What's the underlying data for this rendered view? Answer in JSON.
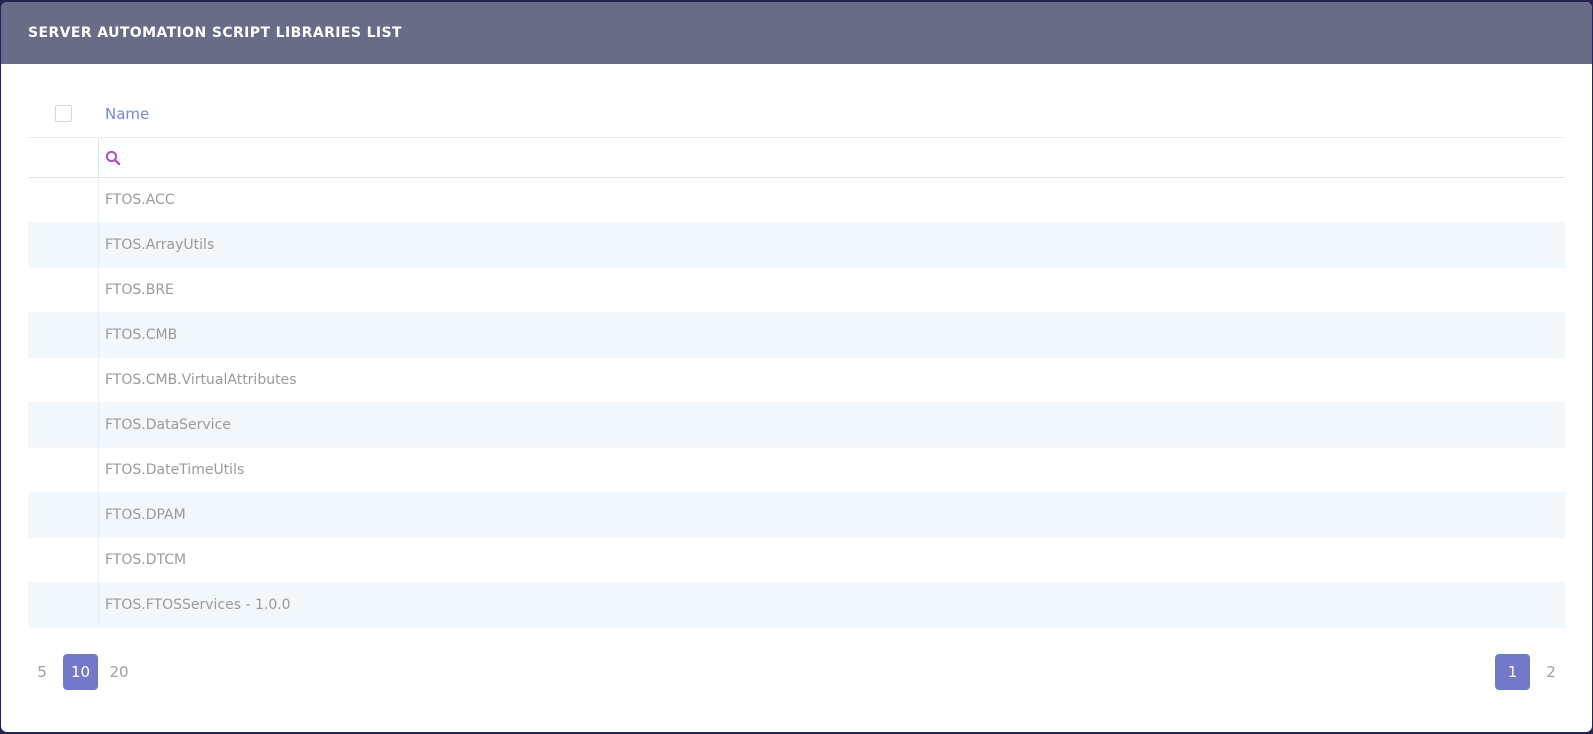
{
  "titlebar": {
    "title": "SERVER AUTOMATION SCRIPT LIBRARIES LIST"
  },
  "table": {
    "select_all": {
      "checked": false
    },
    "columns": [
      {
        "label": "Name"
      }
    ],
    "search": {
      "value": "",
      "placeholder": "",
      "icon": "search-icon"
    },
    "rows": [
      "FTOS.ACC",
      "FTOS.ArrayUtils",
      "FTOS.BRE",
      "FTOS.CMB",
      "FTOS.CMB.VirtualAttributes",
      "FTOS.DataService",
      "FTOS.DateTimeUtils",
      "FTOS.DPAM",
      "FTOS.DTCM",
      "FTOS.FTOSServices - 1.0.0"
    ]
  },
  "pagination": {
    "page_sizes": [
      "5",
      "10",
      "20"
    ],
    "selected_page_size": "10",
    "pages": [
      "1",
      "2"
    ],
    "current_page": "1"
  },
  "colors": {
    "titlebar_background": "#686c87",
    "outer_background": "#262350",
    "accent_selected": "#7279c8",
    "column_header_text": "#7b84d4",
    "search_icon": "#b14fc7",
    "row_text": "#9a9a9a",
    "row_alternate_background": "#f1f7fa"
  }
}
